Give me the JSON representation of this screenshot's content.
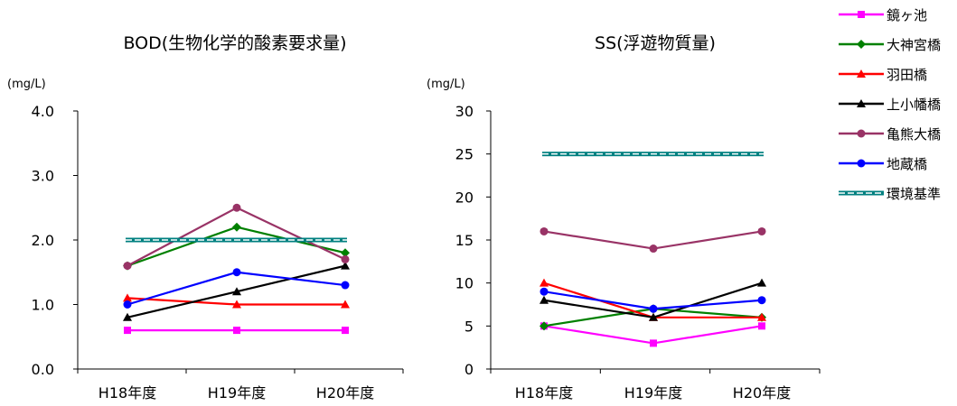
{
  "legend": {
    "position": "right",
    "items": [
      {
        "name": "鏡ヶ池",
        "color": "#FF00FF",
        "marker": "square",
        "dashed": false
      },
      {
        "name": "大神宮橋",
        "color": "#008000",
        "marker": "diamond",
        "dashed": false
      },
      {
        "name": "羽田橋",
        "color": "#FF0000",
        "marker": "triangle",
        "dashed": false
      },
      {
        "name": "上小幡橋",
        "color": "#000000",
        "marker": "triangle",
        "dashed": false
      },
      {
        "name": "亀熊大橋",
        "color": "#993366",
        "marker": "circle",
        "dashed": false
      },
      {
        "name": "地蔵橋",
        "color": "#0000FF",
        "marker": "circle",
        "dashed": false
      },
      {
        "name": "環境基準",
        "color": "#008080",
        "marker": "none",
        "dashed": true
      }
    ]
  },
  "chart_data": [
    {
      "type": "line",
      "title": "BOD(生物化学的酸素要求量)",
      "unit_label": "(mg/L)",
      "categories": [
        "H18年度",
        "H19年度",
        "H20年度"
      ],
      "ylim": [
        0,
        4
      ],
      "yticks": [
        "0.0",
        "1.0",
        "2.0",
        "3.0",
        "4.0"
      ],
      "ytick_values": [
        0,
        1,
        2,
        3,
        4
      ],
      "grid": false,
      "series": [
        {
          "name": "鏡ヶ池",
          "values": [
            0.6,
            0.6,
            0.6
          ]
        },
        {
          "name": "大神宮橋",
          "values": [
            1.6,
            2.2,
            1.8
          ]
        },
        {
          "name": "羽田橋",
          "values": [
            1.1,
            1.0,
            1.0
          ]
        },
        {
          "name": "上小幡橋",
          "values": [
            0.8,
            1.2,
            1.6
          ]
        },
        {
          "name": "亀熊大橋",
          "values": [
            1.6,
            2.5,
            1.7
          ]
        },
        {
          "name": "地蔵橋",
          "values": [
            1.0,
            1.5,
            1.3
          ]
        },
        {
          "name": "環境基準",
          "values": [
            2.0,
            2.0,
            2.0
          ]
        }
      ]
    },
    {
      "type": "line",
      "title": "SS(浮遊物質量)",
      "unit_label": "(mg/L)",
      "categories": [
        "H18年度",
        "H19年度",
        "H20年度"
      ],
      "ylim": [
        0,
        30
      ],
      "yticks": [
        "0",
        "5",
        "10",
        "15",
        "20",
        "25",
        "30"
      ],
      "ytick_values": [
        0,
        5,
        10,
        15,
        20,
        25,
        30
      ],
      "grid": false,
      "series": [
        {
          "name": "鏡ヶ池",
          "values": [
            5,
            3,
            5
          ]
        },
        {
          "name": "大神宮橋",
          "values": [
            5,
            7,
            6
          ]
        },
        {
          "name": "羽田橋",
          "values": [
            10,
            6,
            6
          ]
        },
        {
          "name": "上小幡橋",
          "values": [
            8,
            6,
            10
          ]
        },
        {
          "name": "亀熊大橋",
          "values": [
            16,
            14,
            16
          ]
        },
        {
          "name": "地蔵橋",
          "values": [
            9,
            7,
            8
          ]
        },
        {
          "name": "環境基準",
          "values": [
            25,
            25,
            25
          ]
        }
      ]
    }
  ]
}
